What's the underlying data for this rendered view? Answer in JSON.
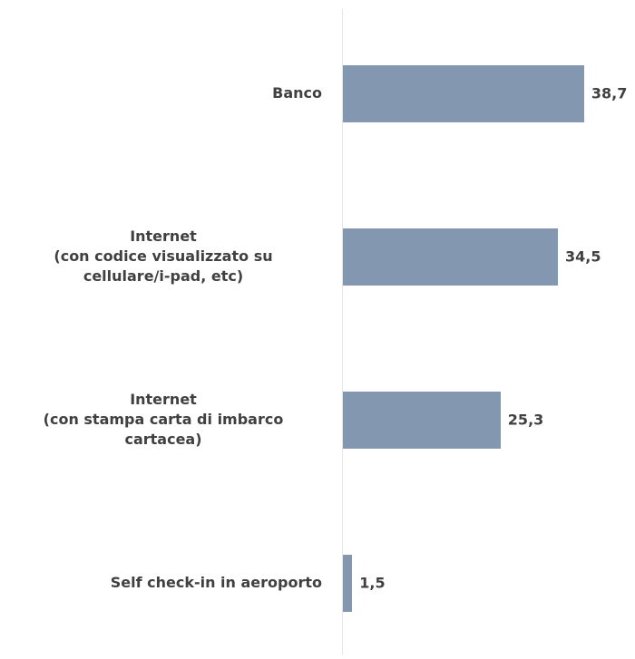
{
  "chart_data": {
    "type": "bar",
    "orientation": "horizontal",
    "categories": [
      "Banco",
      "Internet\n(con codice visualizzato su\ncellulare/i-pad, etc)",
      "Internet\n(con stampa carta di imbarco\ncartacea)",
      "Self check-in in aeroporto"
    ],
    "values": [
      38.7,
      34.5,
      25.3,
      1.5
    ],
    "value_labels": [
      "38,7",
      "34,5",
      "25,3",
      "1,5"
    ],
    "color": "#8497b0"
  }
}
